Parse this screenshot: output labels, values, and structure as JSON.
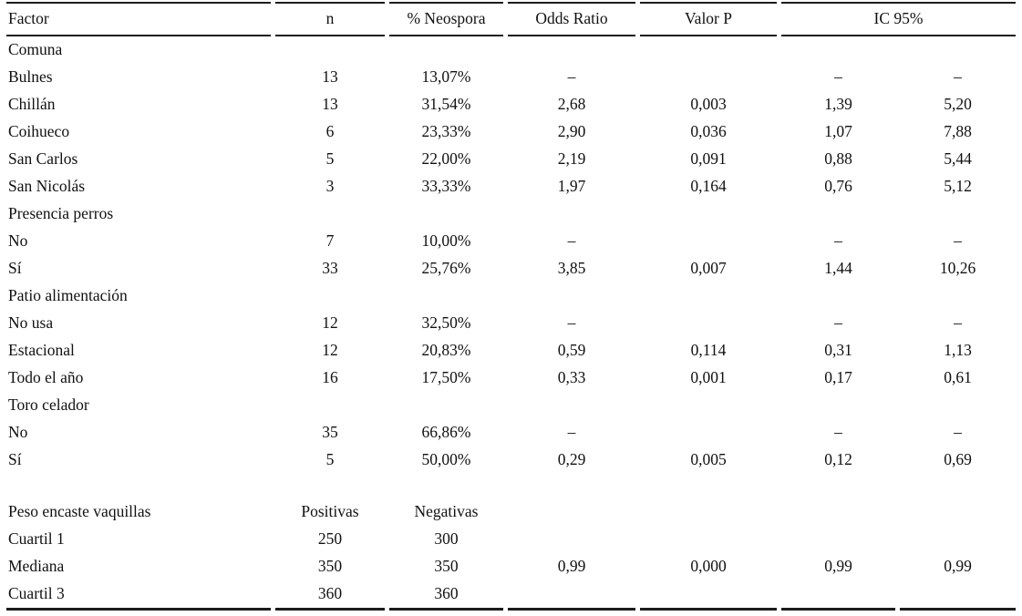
{
  "table": {
    "columns": [
      "Factor",
      "n",
      "% Neospora",
      "Odds Ratio",
      "Valor P",
      "IC 95%"
    ],
    "cell_fields": [
      "factor",
      "n",
      "neospora",
      "odds-ratio",
      "valor-p",
      "ic-lower",
      "ic-upper"
    ],
    "rows": [
      {
        "type": "section",
        "label": "Comuna",
        "values": [
          "",
          "",
          "",
          "",
          "",
          ""
        ]
      },
      {
        "type": "data",
        "label": "Bulnes",
        "values": [
          "13",
          "13,07%",
          "–",
          "",
          "–",
          "–"
        ]
      },
      {
        "type": "data",
        "label": "Chillán",
        "values": [
          "13",
          "31,54%",
          "2,68",
          "0,003",
          "1,39",
          "5,20"
        ]
      },
      {
        "type": "data",
        "label": "Coihueco",
        "values": [
          "6",
          "23,33%",
          "2,90",
          "0,036",
          "1,07",
          "7,88"
        ]
      },
      {
        "type": "data",
        "label": "San Carlos",
        "values": [
          "5",
          "22,00%",
          "2,19",
          "0,091",
          "0,88",
          "5,44"
        ]
      },
      {
        "type": "data",
        "label": "San Nicolás",
        "values": [
          "3",
          "33,33%",
          "1,97",
          "0,164",
          "0,76",
          "5,12"
        ]
      },
      {
        "type": "section",
        "label": "Presencia perros",
        "values": [
          "",
          "",
          "",
          "",
          "",
          ""
        ]
      },
      {
        "type": "data",
        "label": "No",
        "values": [
          "7",
          "10,00%",
          "–",
          "",
          "–",
          "–"
        ]
      },
      {
        "type": "data",
        "label": "Sí",
        "values": [
          "33",
          "25,76%",
          "3,85",
          "0,007",
          "1,44",
          "10,26"
        ]
      },
      {
        "type": "section",
        "label": "Patio alimentación",
        "values": [
          "",
          "",
          "",
          "",
          "",
          ""
        ]
      },
      {
        "type": "data",
        "label": "No usa",
        "values": [
          "12",
          "32,50%",
          "–",
          "",
          "–",
          "–"
        ]
      },
      {
        "type": "data",
        "label": "Estacional",
        "values": [
          "12",
          "20,83%",
          "0,59",
          "0,114",
          "0,31",
          "1,13"
        ]
      },
      {
        "type": "data",
        "label": "Todo el año",
        "values": [
          "16",
          "17,50%",
          "0,33",
          "0,001",
          "0,17",
          "0,61"
        ]
      },
      {
        "type": "section",
        "label": "Toro celador",
        "values": [
          "",
          "",
          "",
          "",
          "",
          ""
        ]
      },
      {
        "type": "data",
        "label": "No",
        "values": [
          "35",
          "66,86%",
          "–",
          "",
          "–",
          "–"
        ]
      },
      {
        "type": "data",
        "label": "Sí",
        "values": [
          "5",
          "50,00%",
          "0,29",
          "0,005",
          "0,12",
          "0,69"
        ]
      },
      {
        "type": "spacer",
        "label": "",
        "values": [
          "",
          "",
          "",
          "",
          "",
          ""
        ]
      },
      {
        "type": "data",
        "label": "Peso encaste vaquillas",
        "values": [
          "Positivas",
          "Negativas",
          "",
          "",
          "",
          ""
        ]
      },
      {
        "type": "data",
        "label": "Cuartil 1",
        "values": [
          "250",
          "300",
          "",
          "",
          "",
          ""
        ]
      },
      {
        "type": "data",
        "label": "Mediana",
        "values": [
          "350",
          "350",
          "0,99",
          "0,000",
          "0,99",
          "0,99"
        ]
      },
      {
        "type": "data",
        "label": "Cuartil 3",
        "values": [
          "360",
          "360",
          "",
          "",
          "",
          ""
        ]
      }
    ]
  }
}
